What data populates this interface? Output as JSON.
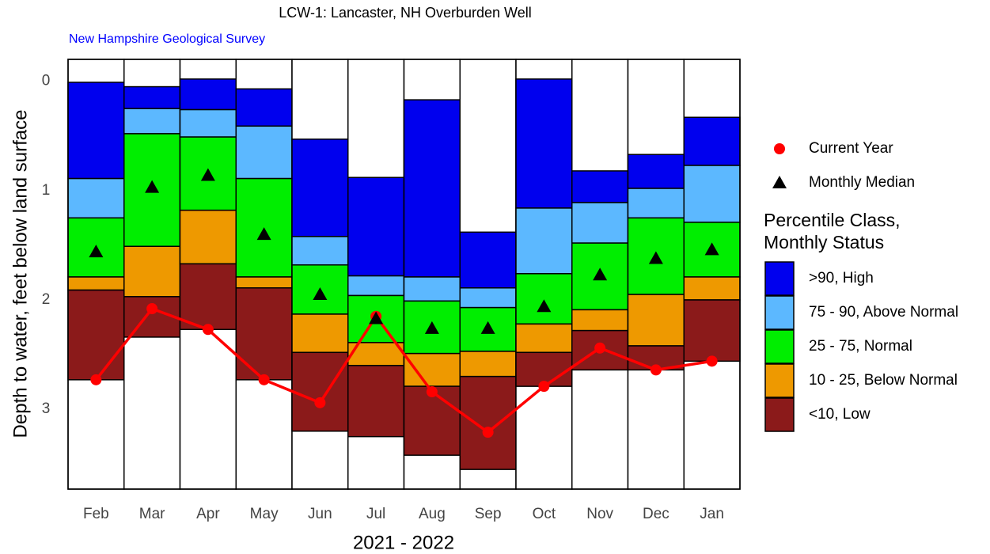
{
  "chart_data": {
    "type": "percentile_bar",
    "title": "LCW-1: Lancaster, NH Overburden Well",
    "subtitle": "New Hampshire Geological Survey",
    "y_label": "Depth to water, feet below land surface",
    "x_label": "2021 - 2022",
    "categories": [
      "Feb",
      "Mar",
      "Apr",
      "May",
      "Jun",
      "Jul",
      "Aug",
      "Sep",
      "Oct",
      "Nov",
      "Dec",
      "Jan"
    ],
    "ylim": [
      -0.2,
      3.73
    ],
    "y_reversed": true,
    "yticks": [
      0,
      1,
      2,
      3
    ],
    "grid": false,
    "bounds": [
      [
        0.01,
        0.89,
        1.25,
        1.79,
        1.91,
        2.73
      ],
      [
        0.05,
        0.25,
        0.48,
        1.51,
        1.97,
        2.34
      ],
      [
        -0.02,
        0.26,
        0.51,
        1.18,
        1.67,
        2.27
      ],
      [
        0.07,
        0.41,
        0.89,
        1.79,
        1.89,
        2.73
      ],
      [
        0.53,
        1.42,
        1.68,
        2.13,
        2.48,
        3.2
      ],
      [
        0.88,
        1.78,
        1.96,
        2.39,
        2.6,
        3.25
      ],
      [
        0.17,
        1.79,
        2.01,
        2.49,
        2.79,
        3.42
      ],
      [
        1.38,
        1.89,
        2.07,
        2.47,
        2.7,
        3.55
      ],
      [
        -0.02,
        1.16,
        1.76,
        2.22,
        2.48,
        2.79
      ],
      [
        0.82,
        1.11,
        1.48,
        2.09,
        2.28,
        2.64
      ],
      [
        0.67,
        0.98,
        1.25,
        1.95,
        2.42,
        2.64
      ],
      [
        0.33,
        0.77,
        1.29,
        1.79,
        2.0,
        2.56
      ]
    ],
    "classes_title": [
      "Percentile Class,",
      "Monthly Status"
    ],
    "classes": [
      {
        "name": ">90, High",
        "color": "#0000ee"
      },
      {
        "name": "75 - 90, Above Normal",
        "color": "#5cb8ff"
      },
      {
        "name": "25 - 75, Normal",
        "color": "#00ee00"
      },
      {
        "name": "10 - 25, Below Normal",
        "color": "#ee9900"
      },
      {
        "name": "<10, Low",
        "color": "#8b1a1a"
      }
    ],
    "series": [
      {
        "name": "Current Year",
        "color": "#ff0000",
        "marker": "circle",
        "values": [
          2.73,
          2.08,
          2.27,
          2.73,
          2.94,
          2.15,
          2.84,
          3.21,
          2.79,
          2.44,
          2.64,
          2.56
        ]
      },
      {
        "name": "Monthly Median",
        "color": "#000000",
        "marker": "triangle",
        "values": [
          1.56,
          0.97,
          0.86,
          1.4,
          1.95,
          2.17,
          2.26,
          2.26,
          2.06,
          1.77,
          1.62,
          1.54
        ]
      }
    ]
  }
}
